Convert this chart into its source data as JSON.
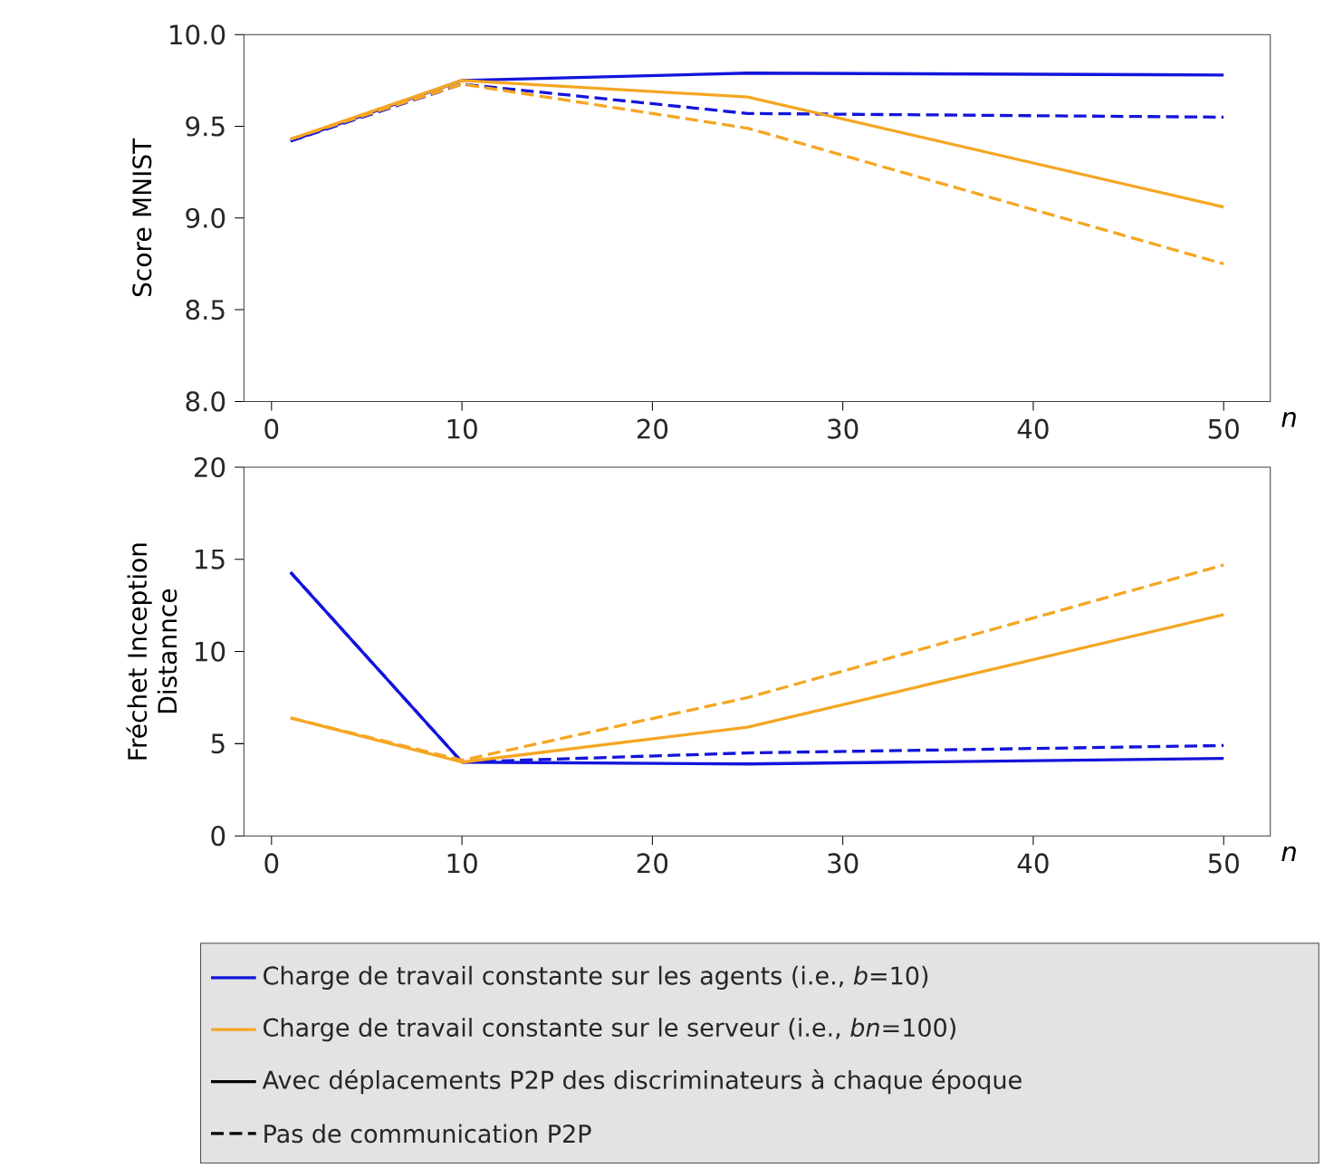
{
  "chart_data": [
    {
      "type": "line",
      "ylabel": "Score MNIST",
      "xlabel": "*n*",
      "x": [
        1,
        10,
        25,
        50
      ],
      "xlim": [
        -1.45,
        52.45
      ],
      "ylim": [
        8.0,
        10.0
      ],
      "xticks": [
        0,
        10,
        20,
        30,
        40,
        50
      ],
      "yticks": [
        {
          "value": 8.0,
          "label": "8.0"
        },
        {
          "value": 8.5,
          "label": "8.5"
        },
        {
          "value": 9.0,
          "label": "9.0"
        },
        {
          "value": 9.5,
          "label": "9.5"
        },
        {
          "value": 10.0,
          "label": "10.0"
        }
      ],
      "grid": false,
      "marker": "none",
      "series": [
        {
          "color": "#1414dc",
          "line_style": "solid",
          "values": [
            9.42,
            9.75,
            9.79,
            9.78
          ]
        },
        {
          "color": "#1414dc",
          "line_style": "dashed",
          "values": [
            9.42,
            9.73,
            9.57,
            9.55
          ]
        },
        {
          "color": "#f5a623",
          "line_style": "solid",
          "values": [
            9.43,
            9.75,
            9.66,
            9.06
          ]
        },
        {
          "color": "#f5a623",
          "line_style": "dashed",
          "values": [
            9.43,
            9.73,
            9.49,
            8.75
          ]
        }
      ]
    },
    {
      "type": "line",
      "ylabel": "Fréchet Inception Distannce",
      "xlabel": "*n*",
      "x": [
        1,
        10,
        25,
        50
      ],
      "xlim": [
        -1.45,
        52.45
      ],
      "ylim": [
        0,
        20
      ],
      "xticks": [
        0,
        10,
        20,
        30,
        40,
        50
      ],
      "yticks": [
        0,
        5,
        10,
        15,
        20
      ],
      "grid": false,
      "marker": "none",
      "series": [
        {
          "color": "#1414dc",
          "line_style": "solid",
          "values": [
            14.3,
            4.0,
            3.9,
            4.2
          ]
        },
        {
          "color": "#1414dc",
          "line_style": "dashed",
          "values": [
            14.3,
            4.0,
            4.5,
            4.9
          ]
        },
        {
          "color": "#f5a623",
          "line_style": "solid",
          "values": [
            6.4,
            4.0,
            5.9,
            12.0
          ]
        },
        {
          "color": "#f5a623",
          "line_style": "dashed",
          "values": [
            6.4,
            4.1,
            7.5,
            14.7
          ]
        }
      ],
      "annotations": [
        "Charge de travail constante sur les agents (i.e., *b*=10)",
        "Charge de travail constante sur le serveur (i.e., *bn*=100)",
        "Avec déplacements P2P des discriminateurs à chaque époque",
        "Pas de communication P2P"
      ]
    }
  ]
}
